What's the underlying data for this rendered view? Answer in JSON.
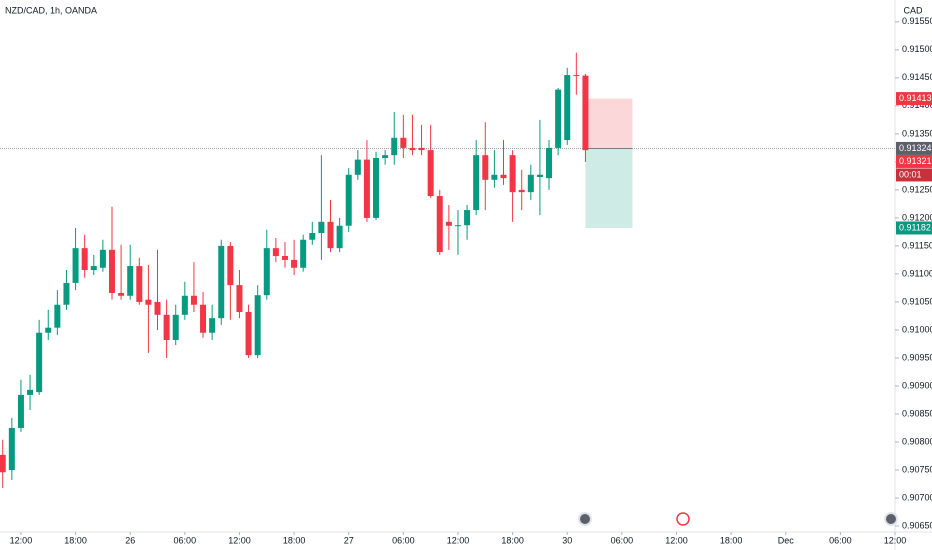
{
  "chart_data": {
    "type": "candlestick",
    "title": "NZD/CAD, 1h, OANDA",
    "currency": "CAD",
    "up_color": "#089981",
    "down_color": "#f23645",
    "open": [
      0.90777,
      0.9075,
      0.90825,
      0.90884,
      0.90889,
      0.90995,
      0.91004,
      0.91045,
      0.91084,
      0.91146,
      0.91107,
      0.91111,
      0.91143,
      0.91066,
      0.91061,
      0.91114,
      0.91054,
      0.9105,
      0.91027,
      0.90982,
      0.91027,
      0.91061,
      0.91045,
      0.90995,
      0.91021,
      0.9115,
      0.9108,
      0.91032,
      0.90955,
      0.91062,
      0.91146,
      0.91132,
      0.91125,
      0.91111,
      0.91161,
      0.91173,
      0.91193,
      0.91146,
      0.91186,
      0.91277,
      0.91304,
      0.912,
      0.91307,
      0.91312,
      0.91343,
      0.91325,
      0.91325,
      0.91321,
      0.91239,
      0.91193,
      0.91186,
      0.91187,
      0.91214,
      0.91312,
      0.91268,
      0.91277,
      0.91312,
      0.9125,
      0.91246,
      0.91273,
      0.91271,
      0.91325,
      0.91339,
      0.91455,
      0.91454
    ],
    "high": [
      0.90804,
      0.90843,
      0.90911,
      0.9092,
      0.91018,
      0.91036,
      0.91071,
      0.91107,
      0.91182,
      0.9117,
      0.91134,
      0.91161,
      0.9122,
      0.91152,
      0.91152,
      0.91129,
      0.91116,
      0.91143,
      0.91054,
      0.91045,
      0.91086,
      0.91121,
      0.91068,
      0.91045,
      0.91161,
      0.91157,
      0.91107,
      0.91045,
      0.9108,
      0.91179,
      0.91164,
      0.91157,
      0.91161,
      0.9117,
      0.91193,
      0.91312,
      0.91232,
      0.912,
      0.91289,
      0.91321,
      0.91339,
      0.91318,
      0.91321,
      0.91389,
      0.91384,
      0.91384,
      0.91366,
      0.91366,
      0.9125,
      0.91223,
      0.91214,
      0.91223,
      0.91339,
      0.91371,
      0.91321,
      0.91339,
      0.91321,
      0.91286,
      0.91295,
      0.91375,
      0.91339,
      0.91432,
      0.91468,
      0.91495,
      0.91457
    ],
    "low": [
      0.90718,
      0.90732,
      0.90818,
      0.90857,
      0.90884,
      0.90982,
      0.90991,
      0.91036,
      0.91071,
      0.91093,
      0.91098,
      0.91104,
      0.91054,
      0.91054,
      0.91054,
      0.91045,
      0.90959,
      0.91,
      0.9095,
      0.90973,
      0.91018,
      0.91032,
      0.90986,
      0.90982,
      0.91009,
      0.91018,
      0.91021,
      0.9095,
      0.9095,
      0.91054,
      0.91121,
      0.91111,
      0.91098,
      0.91104,
      0.91152,
      0.91125,
      0.91139,
      0.91139,
      0.91175,
      0.91268,
      0.91193,
      0.91196,
      0.91295,
      0.91295,
      0.91307,
      0.91312,
      0.91312,
      0.91236,
      0.91134,
      0.91143,
      0.91134,
      0.91161,
      0.91205,
      0.91214,
      0.91254,
      0.91259,
      0.91193,
      0.91214,
      0.91232,
      0.91205,
      0.9125,
      0.91312,
      0.9133,
      0.9142,
      0.913
    ],
    "close": [
      0.90746,
      0.90825,
      0.90884,
      0.90893,
      0.90995,
      0.91004,
      0.91045,
      0.91084,
      0.91146,
      0.91107,
      0.91114,
      0.91143,
      0.91066,
      0.91061,
      0.91114,
      0.9105,
      0.91045,
      0.91027,
      0.90982,
      0.91027,
      0.91061,
      0.91045,
      0.90995,
      0.91021,
      0.9115,
      0.9108,
      0.91032,
      0.90955,
      0.91062,
      0.91146,
      0.91132,
      0.91125,
      0.91111,
      0.91161,
      0.91173,
      0.91193,
      0.91146,
      0.91186,
      0.91277,
      0.91304,
      0.912,
      0.91307,
      0.91312,
      0.91343,
      0.91325,
      0.91321,
      0.91321,
      0.91239,
      0.91139,
      0.91186,
      0.91187,
      0.91214,
      0.91312,
      0.91268,
      0.91277,
      0.91271,
      0.91246,
      0.91246,
      0.91277,
      0.91277,
      0.91325,
      0.91429,
      0.91455,
      0.91454,
      0.91321
    ],
    "xlim": [
      -0.3,
      98
    ],
    "xticks": [
      {
        "value": 2,
        "label": "12:00"
      },
      {
        "value": 8,
        "label": "18:00"
      },
      {
        "value": 14,
        "label": "26"
      },
      {
        "value": 20,
        "label": "06:00"
      },
      {
        "value": 26,
        "label": "12:00"
      },
      {
        "value": 32,
        "label": "18:00"
      },
      {
        "value": 38,
        "label": "27"
      },
      {
        "value": 44,
        "label": "06:00"
      },
      {
        "value": 50,
        "label": "12:00"
      },
      {
        "value": 56,
        "label": "18:00"
      },
      {
        "value": 62,
        "label": "30"
      },
      {
        "value": 68,
        "label": "06:00"
      },
      {
        "value": 74,
        "label": "12:00"
      },
      {
        "value": 80,
        "label": "18:00"
      },
      {
        "value": 86,
        "label": "Dec"
      },
      {
        "value": 92,
        "label": "06:00"
      },
      {
        "value": 98,
        "label": "12:00"
      }
    ],
    "ylim": [
      0.90625,
      0.91589
    ],
    "yticks": [
      {
        "value": 0.9065,
        "label": "0.90650"
      },
      {
        "value": 0.907,
        "label": "0.90700"
      },
      {
        "value": 0.9075,
        "label": "0.90750"
      },
      {
        "value": 0.908,
        "label": "0.90800"
      },
      {
        "value": 0.9085,
        "label": "0.90850"
      },
      {
        "value": 0.909,
        "label": "0.90900"
      },
      {
        "value": 0.9095,
        "label": "0.90950"
      },
      {
        "value": 0.91,
        "label": "0.91000"
      },
      {
        "value": 0.9105,
        "label": "0.91050"
      },
      {
        "value": 0.911,
        "label": "0.91100"
      },
      {
        "value": 0.9115,
        "label": "0.91150"
      },
      {
        "value": 0.912,
        "label": "0.91200"
      },
      {
        "value": 0.9125,
        "label": "0.91250"
      },
      {
        "value": 0.913,
        "label": "0.91300"
      },
      {
        "value": 0.9135,
        "label": "0.91350"
      },
      {
        "value": 0.914,
        "label": "0.91400"
      },
      {
        "value": 0.9145,
        "label": "0.91450"
      },
      {
        "value": 0.915,
        "label": "0.91500"
      },
      {
        "value": 0.9155,
        "label": "0.91550"
      }
    ],
    "position": {
      "stop": 0.91413,
      "entry": 0.91324,
      "target": 0.91182
    },
    "last_price": 0.91321,
    "countdown": "00:01"
  }
}
